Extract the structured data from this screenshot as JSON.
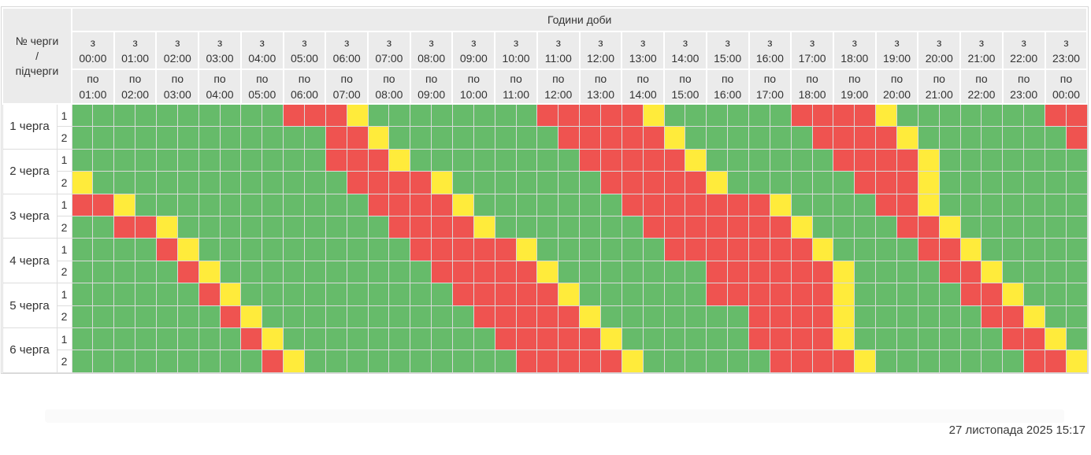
{
  "schedule": {
    "corner": {
      "line1": "№ черги",
      "line2": "/",
      "line3": "підчерги"
    },
    "hours_title": "Години доби",
    "from_word": "з",
    "to_word": "по",
    "hours": [
      {
        "from": "00:00",
        "to": "01:00"
      },
      {
        "from": "01:00",
        "to": "02:00"
      },
      {
        "from": "02:00",
        "to": "03:00"
      },
      {
        "from": "03:00",
        "to": "04:00"
      },
      {
        "from": "04:00",
        "to": "05:00"
      },
      {
        "from": "05:00",
        "to": "06:00"
      },
      {
        "from": "06:00",
        "to": "07:00"
      },
      {
        "from": "07:00",
        "to": "08:00"
      },
      {
        "from": "08:00",
        "to": "09:00"
      },
      {
        "from": "09:00",
        "to": "10:00"
      },
      {
        "from": "10:00",
        "to": "11:00"
      },
      {
        "from": "11:00",
        "to": "12:00"
      },
      {
        "from": "12:00",
        "to": "13:00"
      },
      {
        "from": "13:00",
        "to": "14:00"
      },
      {
        "from": "14:00",
        "to": "15:00"
      },
      {
        "from": "15:00",
        "to": "16:00"
      },
      {
        "from": "16:00",
        "to": "17:00"
      },
      {
        "from": "17:00",
        "to": "18:00"
      },
      {
        "from": "18:00",
        "to": "19:00"
      },
      {
        "from": "19:00",
        "to": "20:00"
      },
      {
        "from": "20:00",
        "to": "21:00"
      },
      {
        "from": "21:00",
        "to": "22:00"
      },
      {
        "from": "22:00",
        "to": "23:00"
      },
      {
        "from": "23:00",
        "to": "00:00"
      }
    ],
    "cell_colors": {
      "G": "#66bb6a",
      "Y": "#ffeb3b",
      "R": "#ef5350"
    },
    "queues": [
      {
        "label": "1 черга",
        "subqueues": [
          {
            "n": "1",
            "cells": "GGGGGGGGGGRRRYGGGGGGGGRRRRRYGGGGGGRRRRYGGGGGGGRR"
          },
          {
            "n": "2",
            "cells": "GGGGGGGGGGGGRRYGGGGGGGGRRRRRYGGGGGGRRRRYGGGGGGGR"
          }
        ]
      },
      {
        "label": "2 черга",
        "subqueues": [
          {
            "n": "1",
            "cells": "GGGGGGGGGGGGRRRYGGGGGGGGRRRRRYGGGGGGRRRRYGGGGGGG"
          },
          {
            "n": "2",
            "cells": "YGGGGGGGGGGGGRRRRYGGGGGGGRRRRRYGGGGGGRRRYGGGGGGG"
          }
        ]
      },
      {
        "label": "3 черга",
        "subqueues": [
          {
            "n": "1",
            "cells": "RRYGGGGGGGGGGGRRRRYGGGGGGGRRRRRRRYGGGGRRYGGGGGGG"
          },
          {
            "n": "2",
            "cells": "GGRRYGGGGGGGGGGRRRRYGGGGGGGRRRRRRRYGGGGRRYGGGGGG"
          }
        ]
      },
      {
        "label": "4 черга",
        "subqueues": [
          {
            "n": "1",
            "cells": "GGGGRYGGGGGGGGGGRRRRRYGGGGGGRRRRRRRYGGGGRRYGGGGG"
          },
          {
            "n": "2",
            "cells": "GGGGGRYGGGGGGGGGGRRRRRYGGGGGGGRRRRRRYGGGGRRYGGGG"
          }
        ]
      },
      {
        "label": "5 черга",
        "subqueues": [
          {
            "n": "1",
            "cells": "GGGGGGRYGGGGGGGGGGRRRRRYGGGGGGRRRRRRYGGGGGRRYGGG"
          },
          {
            "n": "2",
            "cells": "GGGGGGGRYGGGGGGGGGGRRRRRYGGGGGGGRRRRYGGGGGGRRYGG"
          }
        ]
      },
      {
        "label": "6 черга",
        "subqueues": [
          {
            "n": "1",
            "cells": "GGGGGGGGRYGGGGGGGGGGRRRRRYGGGGGGRRRRYGGGGGGGRRYG"
          },
          {
            "n": "2",
            "cells": "GGGGGGGGGRYGGGGGGGGGGRRRRRYGGGGGGRRRRYGGGGGGGRRY"
          }
        ]
      }
    ]
  },
  "footer": {
    "timestamp": "27 листопада 2025 15:17"
  }
}
